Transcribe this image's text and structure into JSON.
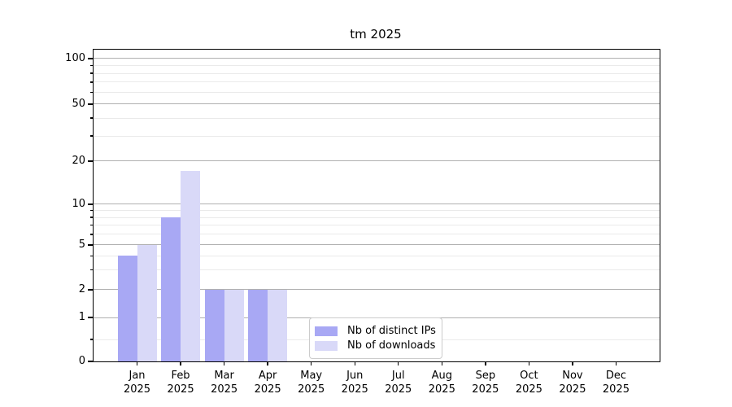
{
  "chart_data": {
    "type": "bar",
    "title": "tm 2025",
    "xlabel": "",
    "ylabel": "",
    "categories": [
      "Jan 2025",
      "Feb 2025",
      "Mar 2025",
      "Apr 2025",
      "May 2025",
      "Jun 2025",
      "Jul 2025",
      "Aug 2025",
      "Sep 2025",
      "Oct 2025",
      "Nov 2025",
      "Dec 2025"
    ],
    "series": [
      {
        "name": "Nb of distinct IPs",
        "color": "#a8a8f4",
        "values": [
          4,
          8,
          2,
          2,
          0,
          0,
          0,
          0,
          0,
          0,
          0,
          0
        ]
      },
      {
        "name": "Nb of downloads",
        "color": "#d9d9f8",
        "values": [
          5,
          17,
          2,
          2,
          0,
          0,
          0,
          0,
          0,
          0,
          0,
          0
        ]
      }
    ],
    "y_axis": {
      "scale": "log-like",
      "range": [
        0,
        100
      ],
      "major_ticks": [
        0,
        1,
        2,
        5,
        10,
        20,
        50,
        100
      ],
      "minor_ticks": [
        0.5,
        3,
        4,
        6,
        7,
        8,
        9,
        30,
        40,
        60,
        70,
        80,
        90
      ]
    },
    "legend": {
      "position": "lower center"
    },
    "grid": "horizontal, major and minor lines"
  },
  "colors": {
    "background": "#ffffff",
    "axis": "#000000",
    "text": "#000000",
    "grid_major": "#b0b0b0",
    "grid_minor": "#eaeaea",
    "legend_border": "#cccccc"
  }
}
